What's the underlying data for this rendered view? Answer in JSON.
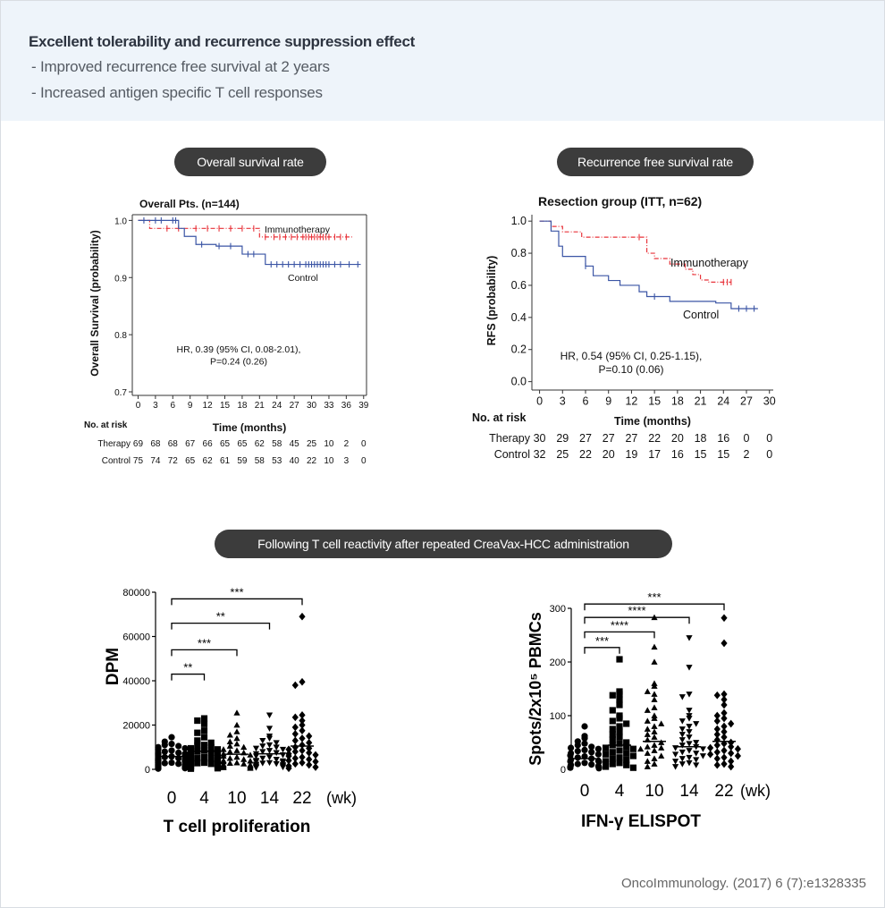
{
  "header": {
    "title": "Excellent tolerability and recurrence suppression effect",
    "bullets": [
      "- Improved recurrence free survival at 2 years",
      "- Increased antigen specific T cell responses"
    ]
  },
  "pills": {
    "os": "Overall survival rate",
    "rfs": "Recurrence free survival rate",
    "tcell": "Following T cell reactivity after repeated CreaVax-HCC administration"
  },
  "citation": "OncoImmunology. (2017) 6 (7):e1328335",
  "colors": {
    "immuno": "#e8333a",
    "control": "#3b55a5",
    "pill": "#3c3c3c",
    "header_bg": "#eef4fa"
  },
  "chart_data": [
    {
      "type": "line",
      "id": "os",
      "title": "Overall Pts. (n=144)",
      "xlabel": "Time (months)",
      "ylabel": "Overall Survival (probability)",
      "xlim": [
        -1,
        39.5
      ],
      "ylim": [
        0.7,
        1.01
      ],
      "x_ticks": [
        0,
        3,
        6,
        9,
        12,
        15,
        18,
        21,
        24,
        27,
        30,
        33,
        36,
        39
      ],
      "y_ticks": [
        0.7,
        0.8,
        0.9,
        1.0
      ],
      "y_tick_labels": [
        "0.7",
        "0.8",
        "0.9",
        "1.0"
      ],
      "series": [
        {
          "name": "Immunotherapy",
          "style": "dashed",
          "color": "#e8333a",
          "steps": [
            [
              0,
              1.0
            ],
            [
              2,
              0.986
            ],
            [
              21,
              0.971
            ],
            [
              37,
              0.971
            ]
          ],
          "censor": [
            5,
            7,
            10,
            12,
            14,
            16,
            18,
            20,
            22,
            23.5,
            24.5,
            25.5,
            26.5,
            27.5,
            28.5,
            29,
            29.5,
            30,
            30.5,
            31,
            31.5,
            32,
            32.5,
            33,
            34,
            35,
            36
          ]
        },
        {
          "name": "Control",
          "style": "solid",
          "color": "#3b55a5",
          "steps": [
            [
              0,
              1.0
            ],
            [
              7,
              0.986
            ],
            [
              8,
              0.972
            ],
            [
              10,
              0.958
            ],
            [
              13.5,
              0.955
            ],
            [
              18,
              0.941
            ],
            [
              22,
              0.923
            ],
            [
              38.5,
              0.923
            ]
          ],
          "censor": [
            1,
            3,
            4,
            6,
            6.5,
            11,
            14,
            16,
            19,
            20,
            23,
            24,
            25,
            26,
            27,
            28,
            29,
            29.5,
            30,
            30.5,
            31,
            31.5,
            32,
            32.5,
            33,
            34,
            35,
            36.5,
            38
          ]
        }
      ],
      "annotations": [
        "HR, 0.39 (95% CI, 0.08-2.01),",
        "P=0.24 (0.26)"
      ],
      "risk_table": {
        "header": "No. at risk",
        "rows": [
          {
            "label": "Therapy",
            "values": [
              "69",
              "68",
              "68",
              "67",
              "66",
              "65",
              "65",
              "62",
              "58",
              "45",
              "25",
              "10",
              "2",
              "0"
            ]
          },
          {
            "label": "Control",
            "values": [
              "75",
              "74",
              "72",
              "65",
              "62",
              "61",
              "59",
              "58",
              "53",
              "40",
              "22",
              "10",
              "3",
              "0"
            ]
          }
        ]
      }
    },
    {
      "type": "line",
      "id": "rfs",
      "title": "Resection group (ITT, n=62)",
      "xlabel": "Time (months)",
      "ylabel": "RFS (probability)",
      "xlim": [
        -1,
        30.5
      ],
      "ylim": [
        -0.03,
        1.04
      ],
      "x_ticks": [
        0,
        3,
        6,
        9,
        12,
        15,
        18,
        21,
        24,
        27,
        30
      ],
      "y_ticks": [
        0.0,
        0.2,
        0.4,
        0.6,
        0.8,
        1.0
      ],
      "y_tick_labels": [
        "0.0",
        "0.2",
        "0.4",
        "0.6",
        "0.8",
        "1.0"
      ],
      "series": [
        {
          "name": "Immunotherapy",
          "style": "dashed",
          "color": "#e8333a",
          "steps": [
            [
              0,
              1.0
            ],
            [
              1.5,
              0.967
            ],
            [
              3,
              0.933
            ],
            [
              5.5,
              0.9
            ],
            [
              14,
              0.8
            ],
            [
              15,
              0.767
            ],
            [
              17,
              0.733
            ],
            [
              19,
              0.7
            ],
            [
              20,
              0.667
            ],
            [
              21,
              0.633
            ],
            [
              22,
              0.62
            ],
            [
              25,
              0.62
            ]
          ],
          "censor": [
            13,
            24,
            24.5,
            25
          ]
        },
        {
          "name": "Control",
          "style": "solid",
          "color": "#3b55a5",
          "steps": [
            [
              0,
              1.0
            ],
            [
              1.5,
              0.938
            ],
            [
              2.5,
              0.844
            ],
            [
              3,
              0.78
            ],
            [
              6,
              0.72
            ],
            [
              7,
              0.66
            ],
            [
              9,
              0.63
            ],
            [
              10.5,
              0.6
            ],
            [
              13,
              0.56
            ],
            [
              14,
              0.53
            ],
            [
              17,
              0.5
            ],
            [
              23,
              0.49
            ],
            [
              25,
              0.455
            ],
            [
              28.5,
              0.455
            ]
          ],
          "censor": [
            6,
            15,
            26,
            27,
            28
          ]
        }
      ],
      "annotations": [
        "HR, 0.54 (95% CI, 0.25-1.15),",
        "P=0.10 (0.06)"
      ],
      "risk_table": {
        "header": "No. at risk",
        "rows": [
          {
            "label": "Therapy",
            "values": [
              "30",
              "29",
              "27",
              "27",
              "27",
              "22",
              "20",
              "18",
              "16",
              "0",
              "0"
            ]
          },
          {
            "label": "Control",
            "values": [
              "32",
              "25",
              "22",
              "20",
              "19",
              "17",
              "16",
              "15",
              "15",
              "2",
              "0"
            ]
          }
        ]
      }
    },
    {
      "type": "scatter",
      "id": "tcell",
      "title": "T cell proliferation",
      "ylabel": "DPM",
      "ylim": [
        0,
        80000
      ],
      "y_ticks": [
        0,
        20000,
        40000,
        60000,
        80000
      ],
      "y_tick_labels": [
        "0",
        "20000",
        "40000",
        "60000",
        "80000"
      ],
      "categories": [
        "0",
        "4",
        "10",
        "14",
        "22"
      ],
      "x_unit": "(wk)",
      "markers": [
        "circle",
        "square",
        "triangle",
        "invtriangle",
        "diamond"
      ],
      "groups": [
        {
          "values": [
            14500,
            12500,
            11500,
            11000,
            10500,
            10000,
            9500,
            9000,
            8500,
            8000,
            7500,
            7200,
            7000,
            6500,
            6000,
            5800,
            5500,
            5000,
            4800,
            4500,
            4200,
            4000,
            3800,
            3500,
            3200,
            3000,
            2800,
            2500,
            2200,
            2000,
            1800,
            1500,
            1200,
            1000,
            800,
            500,
            300
          ]
        },
        {
          "values": [
            23000,
            22000,
            20500,
            17500,
            16500,
            14500,
            13000,
            12000,
            11000,
            10500,
            10000,
            9500,
            9000,
            8500,
            8000,
            7500,
            7000,
            6500,
            6000,
            5500,
            5000,
            4800,
            4500,
            4000,
            3800,
            3500,
            3000,
            2800,
            2500,
            2000,
            1800,
            1500,
            1000,
            800,
            500,
            300
          ]
        },
        {
          "values": [
            25500,
            20000,
            17000,
            15500,
            14000,
            12500,
            11500,
            10500,
            10000,
            9000,
            8500,
            8000,
            7500,
            7000,
            6500,
            6000,
            5500,
            5000,
            4500,
            4000,
            3800,
            3500,
            3000,
            2800,
            2500,
            2200,
            2000,
            1800,
            1500,
            1200,
            1000,
            800,
            500
          ]
        },
        {
          "values": [
            24500,
            18500,
            15000,
            14000,
            13000,
            12000,
            11000,
            10500,
            10000,
            9500,
            9000,
            8500,
            8000,
            7500,
            7000,
            6500,
            6000,
            5500,
            5000,
            4500,
            4000,
            3800,
            3500,
            3200,
            3000,
            2800,
            2500,
            2200,
            2000,
            1800,
            1500,
            1200,
            1000,
            800
          ]
        },
        {
          "values": [
            69000,
            39500,
            38000,
            24500,
            23500,
            22000,
            20000,
            19000,
            17500,
            16000,
            15000,
            14000,
            13000,
            12000,
            11000,
            10000,
            9500,
            9000,
            8500,
            8000,
            7500,
            7000,
            6500,
            6000,
            5500,
            5000,
            4500,
            4000,
            3500,
            3000,
            2500,
            2000,
            1500,
            1000,
            500
          ]
        }
      ],
      "means": [
        5800,
        8200,
        6800,
        7000,
        10500
      ],
      "sig_brackets": [
        {
          "from": 0,
          "to": 1,
          "label": "**",
          "y": 43000
        },
        {
          "from": 0,
          "to": 2,
          "label": "***",
          "y": 54000
        },
        {
          "from": 0,
          "to": 3,
          "label": "**",
          "y": 66000
        },
        {
          "from": 0,
          "to": 4,
          "label": "***",
          "y": 77000
        }
      ]
    },
    {
      "type": "scatter",
      "id": "elispot",
      "title": "IFN-γ ELISPOT",
      "ylabel": "Spots/2x10⁵ PBMCs",
      "ylim": [
        0,
        300
      ],
      "y_ticks": [
        0,
        100,
        200,
        300
      ],
      "y_tick_labels": [
        "0",
        "100",
        "200",
        "300"
      ],
      "categories": [
        "0",
        "4",
        "10",
        "14",
        "22"
      ],
      "x_unit": "(wk)",
      "markers": [
        "circle",
        "square",
        "triangle",
        "invtriangle",
        "diamond"
      ],
      "groups": [
        {
          "values": [
            80,
            62,
            58,
            52,
            48,
            45,
            42,
            40,
            38,
            36,
            34,
            32,
            30,
            28,
            26,
            24,
            22,
            20,
            18,
            16,
            15,
            14,
            12,
            10,
            9,
            8,
            6,
            5,
            4,
            3,
            2
          ]
        },
        {
          "values": [
            205,
            145,
            140,
            138,
            130,
            120,
            110,
            100,
            95,
            90,
            85,
            80,
            75,
            70,
            65,
            60,
            55,
            50,
            48,
            45,
            42,
            40,
            38,
            35,
            32,
            30,
            28,
            25,
            22,
            20,
            18,
            15,
            12,
            10,
            8,
            5,
            3
          ]
        },
        {
          "values": [
            283,
            228,
            200,
            160,
            155,
            145,
            140,
            130,
            115,
            110,
            100,
            95,
            90,
            85,
            80,
            75,
            70,
            65,
            60,
            55,
            50,
            45,
            42,
            40,
            38,
            35,
            30,
            25,
            20,
            15,
            10,
            5
          ]
        },
        {
          "values": [
            245,
            190,
            140,
            135,
            110,
            100,
            95,
            90,
            85,
            80,
            75,
            70,
            65,
            60,
            55,
            50,
            48,
            45,
            42,
            40,
            38,
            35,
            32,
            30,
            28,
            25,
            22,
            20,
            18,
            15,
            12,
            10,
            8,
            5
          ]
        },
        {
          "values": [
            282,
            235,
            140,
            138,
            130,
            120,
            105,
            100,
            95,
            90,
            85,
            80,
            75,
            70,
            65,
            60,
            55,
            50,
            48,
            45,
            42,
            40,
            38,
            35,
            32,
            30,
            28,
            25,
            22,
            20,
            15,
            10,
            8,
            5
          ]
        }
      ],
      "means": [
        20,
        45,
        52,
        42,
        52
      ],
      "sig_brackets": [
        {
          "from": 0,
          "to": 1,
          "label": "***",
          "y": 227
        },
        {
          "from": 0,
          "to": 2,
          "label": "****",
          "y": 256
        },
        {
          "from": 0,
          "to": 3,
          "label": "****",
          "y": 283
        },
        {
          "from": 0,
          "to": 4,
          "label": "***",
          "y": 308
        }
      ]
    }
  ]
}
